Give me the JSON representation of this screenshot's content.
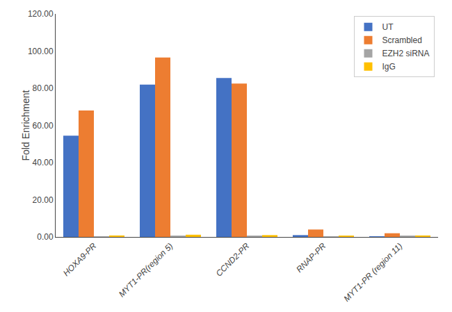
{
  "chart_data": {
    "type": "bar",
    "categories": [
      "HOXA9-PR",
      "MYT1-PR(region 5)",
      "CCND2-PR",
      "RNAP-PR",
      "MYT1-PR (region 11)"
    ],
    "series": [
      {
        "name": "UT",
        "color": "#4472C4",
        "values": [
          54.5,
          82.0,
          85.5,
          1.0,
          0.3
        ]
      },
      {
        "name": "Scrambled",
        "color": "#ED7D31",
        "values": [
          68.0,
          96.5,
          82.5,
          4.0,
          2.0
        ]
      },
      {
        "name": "EZH2 siRNA",
        "color": "#A5A5A5",
        "values": [
          0.3,
          0.5,
          0.5,
          0.3,
          0.4
        ]
      },
      {
        "name": "IgG",
        "color": "#FFC000",
        "values": [
          0.8,
          1.2,
          1.0,
          0.5,
          0.8
        ]
      }
    ],
    "ylabel": "Fold Enrichment",
    "ylim": [
      0,
      120
    ],
    "yticks": [
      {
        "value": 0,
        "label": "0.00"
      },
      {
        "value": 20,
        "label": "20.00"
      },
      {
        "value": 40,
        "label": "40.00"
      },
      {
        "value": 60,
        "label": "60.00"
      },
      {
        "value": 80,
        "label": "80.00"
      },
      {
        "value": 100,
        "label": "100.00"
      },
      {
        "value": 120,
        "label": "120.00"
      }
    ],
    "grid": false,
    "legend": "upper right"
  }
}
